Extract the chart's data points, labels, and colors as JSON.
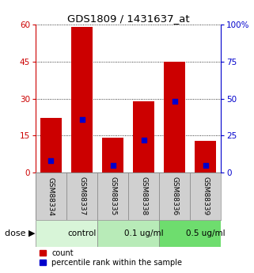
{
  "title": "GDS1809 / 1431637_at",
  "samples": [
    "GSM88334",
    "GSM88337",
    "GSM88335",
    "GSM88338",
    "GSM88336",
    "GSM88339"
  ],
  "bar_heights": [
    22,
    59,
    14,
    29,
    45,
    13
  ],
  "blue_values_pct": [
    8,
    36,
    5,
    22,
    48,
    5
  ],
  "bar_color": "#cc0000",
  "blue_color": "#0000cc",
  "left_ylim": [
    0,
    60
  ],
  "right_ylim": [
    0,
    100
  ],
  "left_yticks": [
    0,
    15,
    30,
    45,
    60
  ],
  "right_yticks": [
    0,
    25,
    50,
    75,
    100
  ],
  "left_yticklabels": [
    "0",
    "15",
    "30",
    "45",
    "60"
  ],
  "right_yticklabels": [
    "0",
    "25",
    "50",
    "75",
    "100%"
  ],
  "dose_groups": [
    {
      "label": "control",
      "start": 0,
      "end": 2,
      "color": "#d8f5d8"
    },
    {
      "label": "0.1 ug/ml",
      "start": 2,
      "end": 4,
      "color": "#b8ebb8"
    },
    {
      "label": "0.5 ug/ml",
      "start": 4,
      "end": 6,
      "color": "#6edd6e"
    }
  ],
  "dose_label": "dose",
  "legend_count_label": "count",
  "legend_pct_label": "percentile rank within the sample",
  "bg_color": "#ffffff",
  "sample_box_color": "#d0d0d0",
  "left_tick_color": "#cc0000",
  "right_tick_color": "#0000cc"
}
